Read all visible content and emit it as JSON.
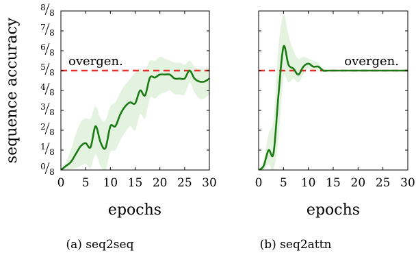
{
  "chart_data": [
    {
      "type": "line",
      "caption": "(a) seq2seq",
      "xlabel": "epochs",
      "ylabel": "sequence accuracy",
      "xlim": [
        0,
        30
      ],
      "ylim": [
        0,
        8
      ],
      "xticks": [
        0,
        5,
        10,
        15,
        20,
        25,
        30
      ],
      "yticks": [
        {
          "num": "0",
          "den": "8",
          "value": 0
        },
        {
          "num": "1",
          "den": "8",
          "value": 1
        },
        {
          "num": "2",
          "den": "8",
          "value": 2
        },
        {
          "num": "3",
          "den": "8",
          "value": 3
        },
        {
          "num": "4",
          "den": "8",
          "value": 4
        },
        {
          "num": "5",
          "den": "8",
          "value": 5
        },
        {
          "num": "6",
          "den": "8",
          "value": 6
        },
        {
          "num": "7",
          "den": "8",
          "value": 7
        },
        {
          "num": "8",
          "den": "8",
          "value": 8
        }
      ],
      "reference_line": {
        "label": "overgen.",
        "value": 5,
        "color": "#e8302a"
      },
      "series_color": "#1a7a12",
      "band_color": "#e4f2e0",
      "x": [
        0,
        1,
        2,
        3,
        4,
        5,
        6,
        7,
        8,
        9,
        10,
        11,
        12,
        13,
        14,
        15,
        16,
        17,
        18,
        19,
        20,
        21,
        22,
        23,
        24,
        25,
        26,
        27,
        28,
        29,
        30
      ],
      "values": [
        0,
        0.2,
        0.4,
        0.8,
        1.2,
        1.35,
        1.15,
        2.2,
        1.4,
        1.1,
        2.2,
        2.2,
        2.8,
        3.2,
        3.4,
        3.35,
        4.0,
        3.75,
        4.65,
        4.65,
        4.8,
        4.8,
        4.8,
        4.6,
        4.6,
        4.6,
        5.0,
        4.6,
        4.45,
        4.45,
        4.6
      ],
      "band_upper": [
        0,
        0.4,
        1.0,
        1.8,
        2.4,
        2.6,
        2.6,
        3.2,
        2.6,
        2.5,
        3.2,
        3.4,
        3.9,
        4.3,
        4.6,
        4.9,
        5.1,
        5.0,
        5.5,
        5.5,
        5.7,
        5.6,
        5.5,
        5.4,
        5.4,
        5.3,
        5.5,
        5.2,
        5.1,
        5.1,
        5.2
      ],
      "band_lower": [
        0,
        0.05,
        0.05,
        0.1,
        0.2,
        0.3,
        0.1,
        0.8,
        0.2,
        0.0,
        0.9,
        1.0,
        1.5,
        1.9,
        2.2,
        2.0,
        2.8,
        2.6,
        3.6,
        3.6,
        3.8,
        3.9,
        4.0,
        3.8,
        3.8,
        3.8,
        4.4,
        3.9,
        3.6,
        3.6,
        3.8
      ]
    },
    {
      "type": "line",
      "caption": "(b) seq2attn",
      "xlabel": "epochs",
      "ylabel": "",
      "xlim": [
        0,
        30
      ],
      "ylim": [
        0,
        8
      ],
      "xticks": [
        0,
        5,
        10,
        15,
        20,
        25,
        30
      ],
      "yticks": [],
      "reference_line": {
        "label": "overgen.",
        "value": 5,
        "color": "#e8302a"
      },
      "series_color": "#1a7a12",
      "band_color": "#e4f2e0",
      "x": [
        0,
        1,
        2,
        3,
        4,
        5,
        6,
        7,
        8,
        9,
        10,
        11,
        12,
        13,
        14,
        15,
        16,
        17,
        18,
        19,
        20,
        21,
        22,
        23,
        24,
        25,
        26,
        27,
        28,
        29,
        30
      ],
      "values": [
        0,
        0.2,
        1.0,
        0.85,
        3.8,
        6.2,
        5.3,
        5.1,
        4.8,
        5.2,
        5.35,
        5.2,
        5.2,
        5.0,
        5.0,
        5.0,
        5.0,
        5.0,
        5.0,
        5.0,
        5.0,
        5.0,
        5.0,
        5.0,
        5.0,
        5.0,
        5.0,
        5.0,
        5.0,
        5.0,
        5.0
      ],
      "band_upper": [
        0,
        0.5,
        1.8,
        2.6,
        6.2,
        7.8,
        6.8,
        6.0,
        5.6,
        5.7,
        5.6,
        5.5,
        5.4,
        5.1,
        5.05,
        5.05,
        5.02,
        5.02,
        5.02,
        5.02,
        5.02,
        5.02,
        5.02,
        5.02,
        5.02,
        5.02,
        5.02,
        5.02,
        5.02,
        5.02,
        5.02
      ],
      "band_lower": [
        0,
        0.0,
        0.3,
        0.0,
        1.6,
        4.6,
        4.4,
        4.6,
        4.4,
        4.8,
        5.1,
        5.0,
        5.0,
        4.95,
        4.98,
        4.98,
        4.98,
        4.98,
        4.98,
        4.98,
        4.98,
        4.98,
        4.98,
        4.98,
        4.98,
        4.98,
        4.98,
        4.98,
        4.98,
        4.98,
        4.98
      ]
    }
  ]
}
